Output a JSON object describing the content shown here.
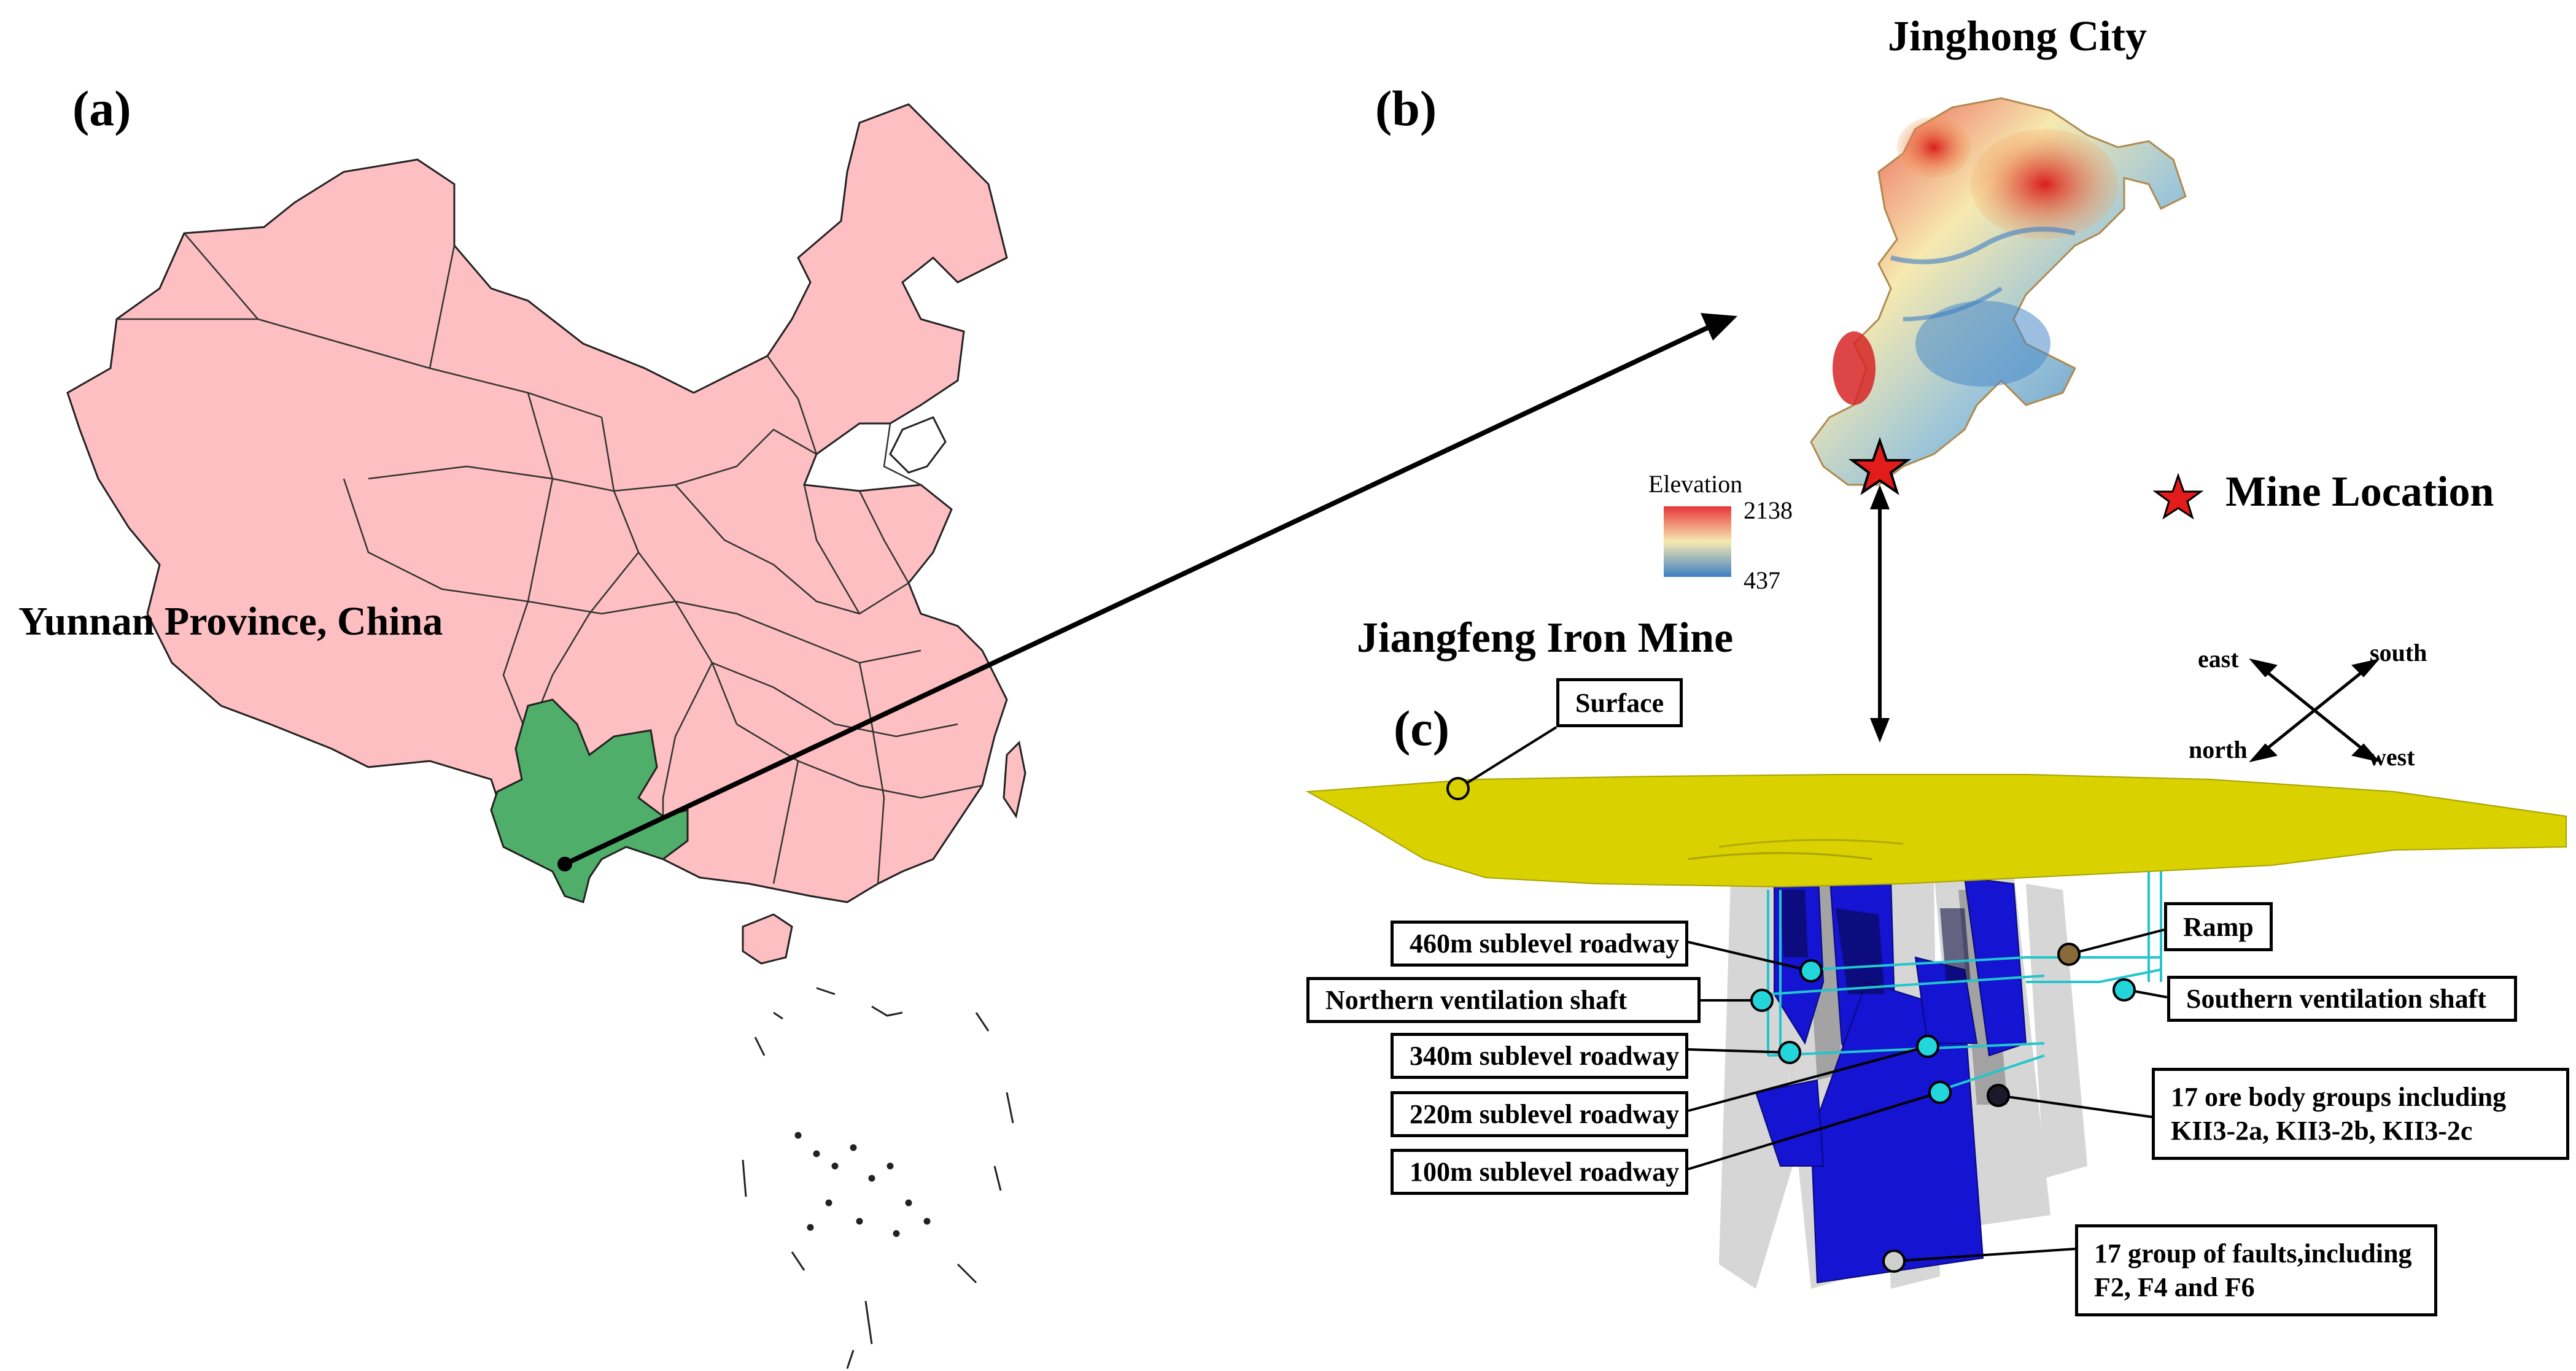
{
  "panels": {
    "a": {
      "letter": "(a)",
      "region_label": "Yunnan Province, China"
    },
    "b": {
      "letter": "(b)",
      "title": "Jinghong City"
    },
    "c": {
      "letter": "(c)",
      "title": "Jiangfeng Iron Mine"
    }
  },
  "elevation_legend": {
    "title": "Elevation",
    "max": "2138",
    "min": "437",
    "colors": [
      "#e8363a",
      "#f7e9b0",
      "#3d7fc4"
    ]
  },
  "mine_legend": {
    "label": "Mine Location",
    "color": "#e21b1b"
  },
  "compass": {
    "east": "east",
    "south": "south",
    "north": "north",
    "west": "west"
  },
  "callouts": {
    "surface": "Surface",
    "ramp": "Ramp",
    "roadway_460": "460m sublevel roadway",
    "north_shaft": "Northern ventilation shaft",
    "south_shaft": "Southern ventilation shaft",
    "roadway_340": "340m sublevel roadway",
    "roadway_220": "220m sublevel roadway",
    "roadway_100": "100m sublevel roadway",
    "ore_line1": "17 ore body groups including",
    "ore_line2": "KII3-2a, KII3-2b, KII3-2c",
    "fault_line1": "17 group of faults,including",
    "fault_line2": "F2, F4 and F6"
  },
  "colors": {
    "china_fill": "#fdbfc2",
    "yunnan_fill": "#4fae6a",
    "surface": "#d9d100",
    "ore": "#1414d2",
    "marker_cyan": "#22d6dc",
    "marker_brown": "#8a6a3a",
    "marker_grey": "#cfcfcf"
  }
}
